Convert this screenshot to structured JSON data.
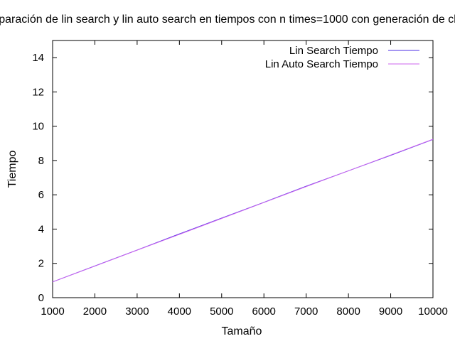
{
  "chart_data": {
    "type": "line",
    "title": "Comparación de lin search y lin auto search en tiempos con n times=1000 con generación de claves",
    "xlabel": "Tamaño",
    "ylabel": "Tiempo",
    "xlim": [
      1000,
      10000
    ],
    "ylim": [
      0,
      15
    ],
    "xticks": [
      1000,
      2000,
      3000,
      4000,
      5000,
      6000,
      7000,
      8000,
      9000,
      10000
    ],
    "yticks": [
      0,
      2,
      4,
      6,
      8,
      10,
      12,
      14
    ],
    "grid": false,
    "legend_position": "top-right",
    "series": [
      {
        "name": "Lin Search Tiempo",
        "color": "#4b2ee6",
        "x": [
          1000,
          2000,
          3000,
          4000,
          5000,
          6000,
          7000,
          8000,
          9000,
          10000
        ],
        "y": [
          0.92,
          1.85,
          2.78,
          3.72,
          4.64,
          5.56,
          6.5,
          7.4,
          8.3,
          9.23
        ]
      },
      {
        "name": "Lin Auto Search Tiempo",
        "color": "#cc66ee",
        "x": [
          1000,
          2000,
          3000,
          4000,
          5000,
          6000,
          7000,
          8000,
          9000,
          10000
        ],
        "y": [
          0.92,
          1.84,
          2.77,
          3.69,
          4.62,
          5.55,
          6.48,
          7.4,
          8.32,
          9.24
        ]
      }
    ]
  }
}
